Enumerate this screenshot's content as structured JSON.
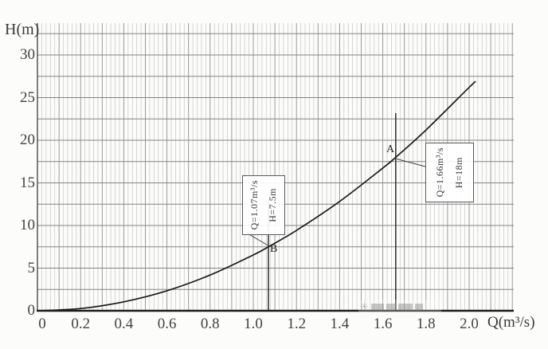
{
  "chart_data": {
    "type": "line",
    "title": "",
    "xlabel": "Q(m³/s)",
    "ylabel": "H(m)",
    "x_ticks": [
      "0",
      "0.2",
      "0.4",
      "0.6",
      "0.8",
      "1.0",
      "1.2",
      "1.4",
      "1.6",
      "1.8",
      "2.0"
    ],
    "x_tick_values": [
      0,
      0.2,
      0.4,
      0.6,
      0.8,
      1.0,
      1.2,
      1.4,
      1.6,
      1.8,
      2.0
    ],
    "y_ticks": [
      "0",
      "5",
      "10",
      "15",
      "20",
      "25",
      "30"
    ],
    "y_tick_values": [
      0,
      5,
      10,
      15,
      20,
      25,
      30
    ],
    "xlim": [
      0,
      2.2
    ],
    "ylim": [
      0,
      33.7
    ],
    "grid": {
      "on": true,
      "x_minor_step": 0.02,
      "x_major_step": 0.1,
      "y_step": 2.5
    },
    "legend": "none",
    "series": [
      {
        "name": "curve",
        "x": [
          0,
          0.2,
          0.4,
          0.6,
          0.8,
          1.0,
          1.07,
          1.2,
          1.4,
          1.6,
          1.66,
          1.8,
          2.0,
          2.03
        ],
        "y": [
          0,
          0.26,
          1.05,
          2.35,
          4.19,
          6.54,
          7.5,
          9.42,
          12.82,
          16.74,
          18.0,
          21.2,
          26.2,
          26.9
        ]
      }
    ],
    "points": [
      {
        "label": "A",
        "Q": 1.66,
        "H": 18
      },
      {
        "label": "B",
        "Q": 1.07,
        "H": 7.5
      }
    ],
    "annotations": [
      {
        "point": "A",
        "lines": [
          "Q=1.66m³/s",
          "H=18m"
        ]
      },
      {
        "point": "B",
        "lines": [
          "Q=1.07m³/s",
          "H=7.5m"
        ]
      }
    ],
    "marker_lines": [
      {
        "at_Q": 1.66,
        "orientation": "vertical"
      },
      {
        "at_Q": 1.07,
        "orientation": "vertical"
      }
    ]
  },
  "watermark": {
    "symbol": "✳"
  }
}
